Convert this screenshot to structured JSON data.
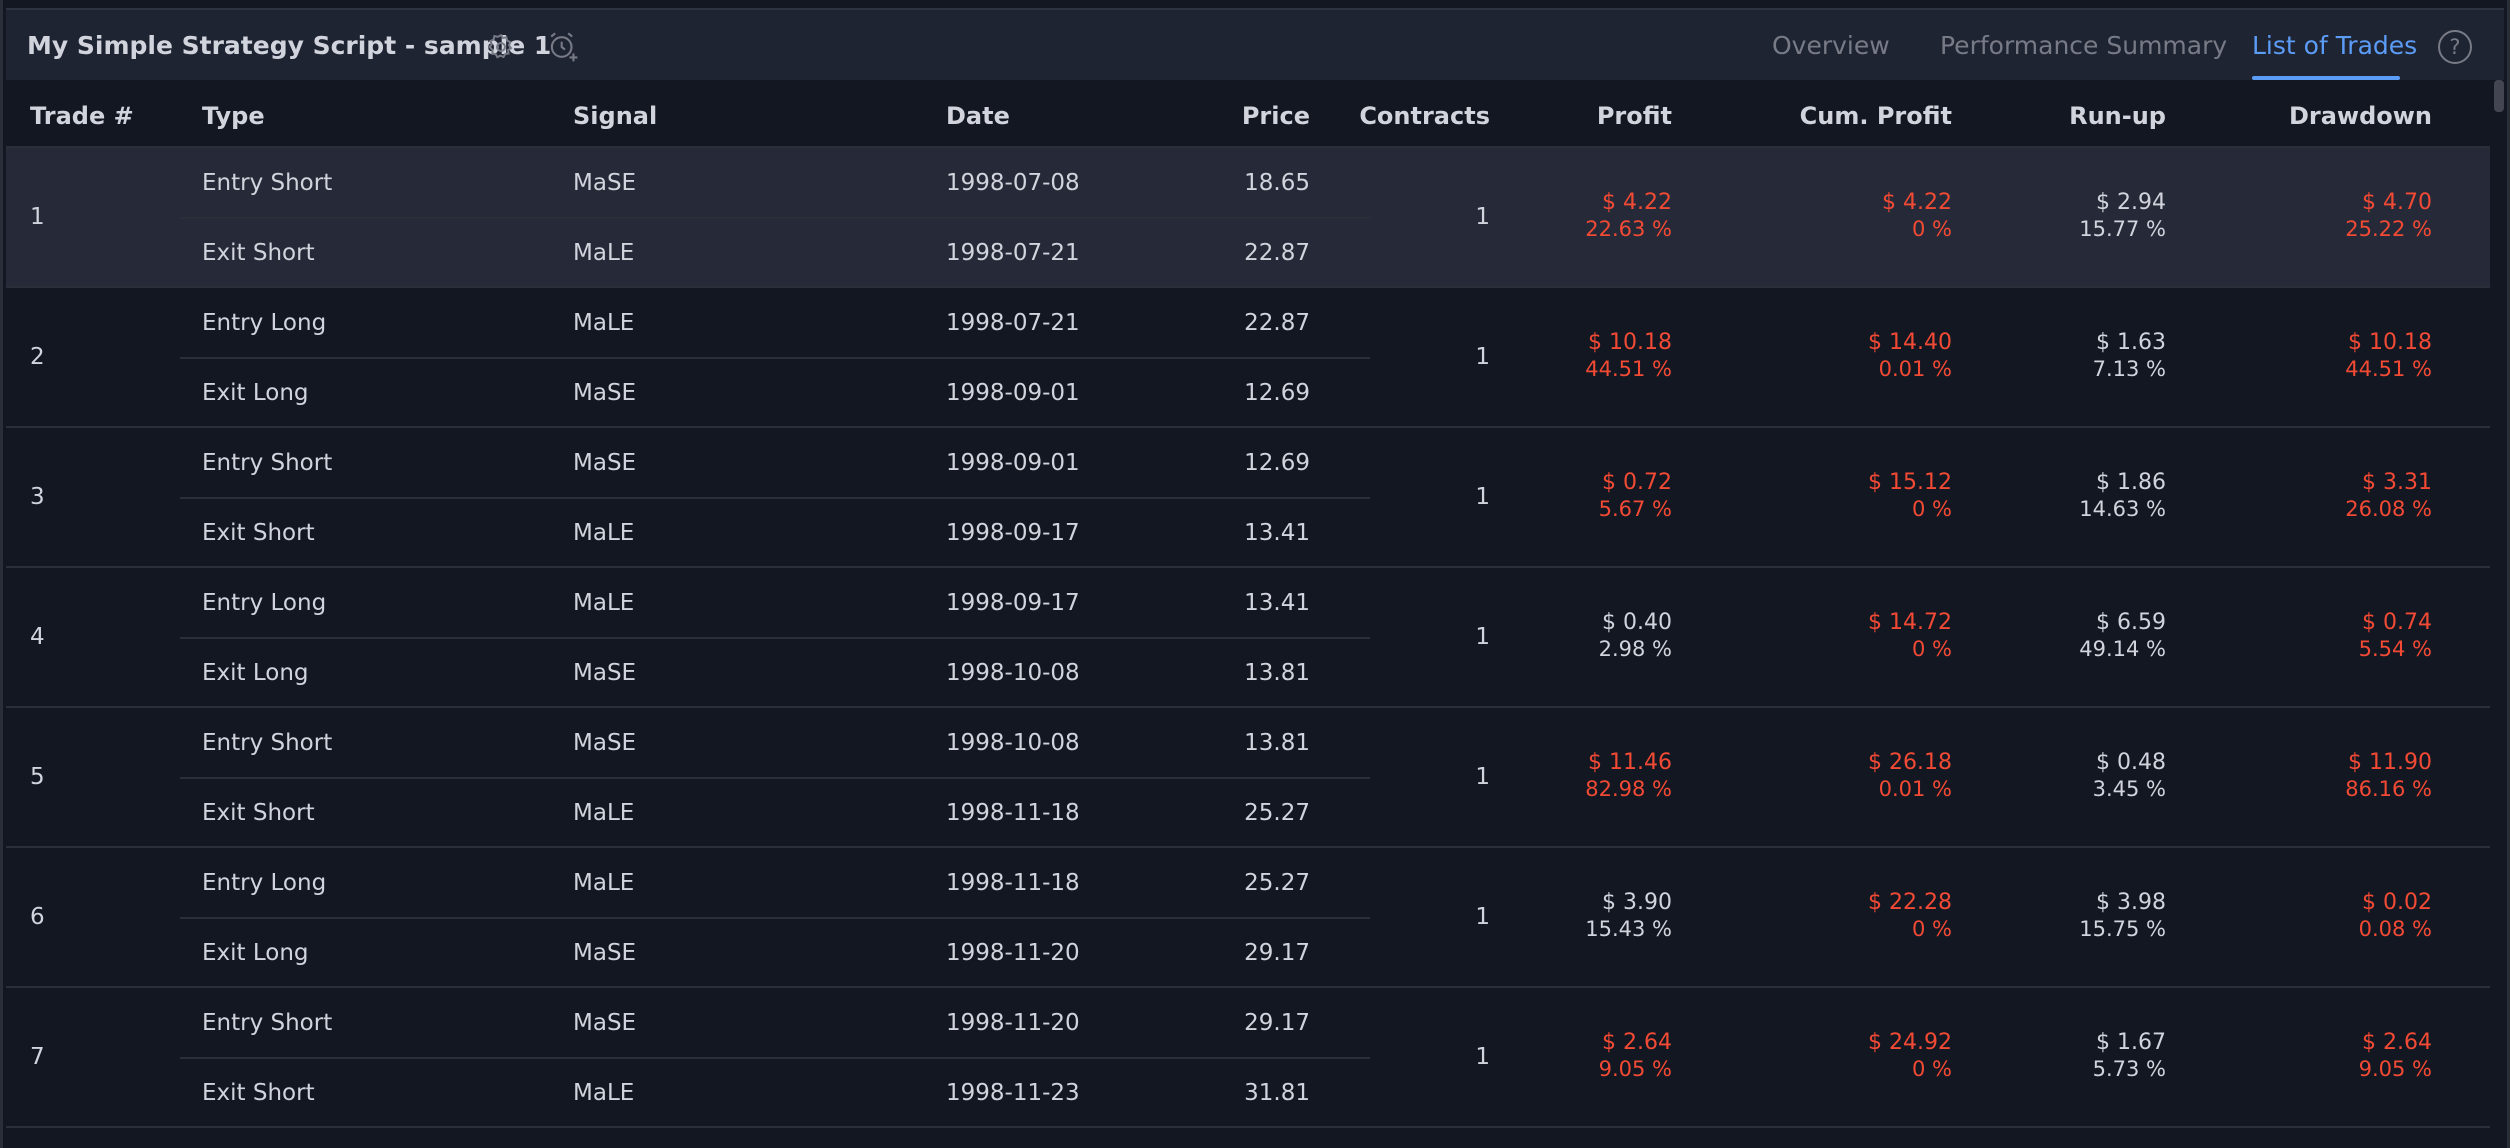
{
  "header": {
    "title": "My Simple Strategy Script - sample 1",
    "tabs": [
      {
        "label": "Overview"
      },
      {
        "label": "Performance Summary"
      },
      {
        "label": "List of Trades"
      }
    ],
    "help_label": "?"
  },
  "columns": [
    "Trade #",
    "Type",
    "Signal",
    "Date",
    "Price",
    "Contracts",
    "Profit",
    "Cum. Profit",
    "Run-up",
    "Drawdown"
  ],
  "trades": [
    {
      "num": "1",
      "entry": {
        "type": "Entry Short",
        "signal": "MaSE",
        "date": "1998-07-08",
        "price": "18.65"
      },
      "exit": {
        "type": "Exit Short",
        "signal": "MaLE",
        "date": "1998-07-21",
        "price": "22.87"
      },
      "contracts": "1",
      "profit": {
        "value": "$ 4.22",
        "pct": "22.63 %",
        "negative": true
      },
      "cum": {
        "value": "$ 4.22",
        "pct": "0 %",
        "negative": true
      },
      "runup": {
        "value": "$ 2.94",
        "pct": "15.77 %"
      },
      "drawdown": {
        "value": "$ 4.70",
        "pct": "25.22 %"
      }
    },
    {
      "num": "2",
      "entry": {
        "type": "Entry Long",
        "signal": "MaLE",
        "date": "1998-07-21",
        "price": "22.87"
      },
      "exit": {
        "type": "Exit Long",
        "signal": "MaSE",
        "date": "1998-09-01",
        "price": "12.69"
      },
      "contracts": "1",
      "profit": {
        "value": "$ 10.18",
        "pct": "44.51 %",
        "negative": true
      },
      "cum": {
        "value": "$ 14.40",
        "pct": "0.01 %",
        "negative": true
      },
      "runup": {
        "value": "$ 1.63",
        "pct": "7.13 %"
      },
      "drawdown": {
        "value": "$ 10.18",
        "pct": "44.51 %"
      }
    },
    {
      "num": "3",
      "entry": {
        "type": "Entry Short",
        "signal": "MaSE",
        "date": "1998-09-01",
        "price": "12.69"
      },
      "exit": {
        "type": "Exit Short",
        "signal": "MaLE",
        "date": "1998-09-17",
        "price": "13.41"
      },
      "contracts": "1",
      "profit": {
        "value": "$ 0.72",
        "pct": "5.67 %",
        "negative": true
      },
      "cum": {
        "value": "$ 15.12",
        "pct": "0 %",
        "negative": true
      },
      "runup": {
        "value": "$ 1.86",
        "pct": "14.63 %"
      },
      "drawdown": {
        "value": "$ 3.31",
        "pct": "26.08 %"
      }
    },
    {
      "num": "4",
      "entry": {
        "type": "Entry Long",
        "signal": "MaLE",
        "date": "1998-09-17",
        "price": "13.41"
      },
      "exit": {
        "type": "Exit Long",
        "signal": "MaSE",
        "date": "1998-10-08",
        "price": "13.81"
      },
      "contracts": "1",
      "profit": {
        "value": "$ 0.40",
        "pct": "2.98 %",
        "negative": false
      },
      "cum": {
        "value": "$ 14.72",
        "pct": "0 %",
        "negative": true
      },
      "runup": {
        "value": "$ 6.59",
        "pct": "49.14 %"
      },
      "drawdown": {
        "value": "$ 0.74",
        "pct": "5.54 %"
      }
    },
    {
      "num": "5",
      "entry": {
        "type": "Entry Short",
        "signal": "MaSE",
        "date": "1998-10-08",
        "price": "13.81"
      },
      "exit": {
        "type": "Exit Short",
        "signal": "MaLE",
        "date": "1998-11-18",
        "price": "25.27"
      },
      "contracts": "1",
      "profit": {
        "value": "$ 11.46",
        "pct": "82.98 %",
        "negative": true
      },
      "cum": {
        "value": "$ 26.18",
        "pct": "0.01 %",
        "negative": true
      },
      "runup": {
        "value": "$ 0.48",
        "pct": "3.45 %"
      },
      "drawdown": {
        "value": "$ 11.90",
        "pct": "86.16 %"
      }
    },
    {
      "num": "6",
      "entry": {
        "type": "Entry Long",
        "signal": "MaLE",
        "date": "1998-11-18",
        "price": "25.27"
      },
      "exit": {
        "type": "Exit Long",
        "signal": "MaSE",
        "date": "1998-11-20",
        "price": "29.17"
      },
      "contracts": "1",
      "profit": {
        "value": "$ 3.90",
        "pct": "15.43 %",
        "negative": false
      },
      "cum": {
        "value": "$ 22.28",
        "pct": "0 %",
        "negative": true
      },
      "runup": {
        "value": "$ 3.98",
        "pct": "15.75 %"
      },
      "drawdown": {
        "value": "$ 0.02",
        "pct": "0.08 %"
      }
    },
    {
      "num": "7",
      "entry": {
        "type": "Entry Short",
        "signal": "MaSE",
        "date": "1998-11-20",
        "price": "29.17"
      },
      "exit": {
        "type": "Exit Short",
        "signal": "MaLE",
        "date": "1998-11-23",
        "price": "31.81"
      },
      "contracts": "1",
      "profit": {
        "value": "$ 2.64",
        "pct": "9.05 %",
        "negative": true
      },
      "cum": {
        "value": "$ 24.92",
        "pct": "0 %",
        "negative": true
      },
      "runup": {
        "value": "$ 1.67",
        "pct": "5.73 %"
      },
      "drawdown": {
        "value": "$ 2.64",
        "pct": "9.05 %"
      }
    }
  ],
  "colors": {
    "background": "#131722",
    "toolbar": "#1f2433",
    "highlight_row": "#262a38",
    "accent": "#5b9cf6",
    "loss": "#f24a34",
    "text": "#d1d4dc",
    "muted": "#787b86"
  },
  "icons": [
    "gear-icon",
    "alarm-add-icon",
    "help-icon"
  ]
}
